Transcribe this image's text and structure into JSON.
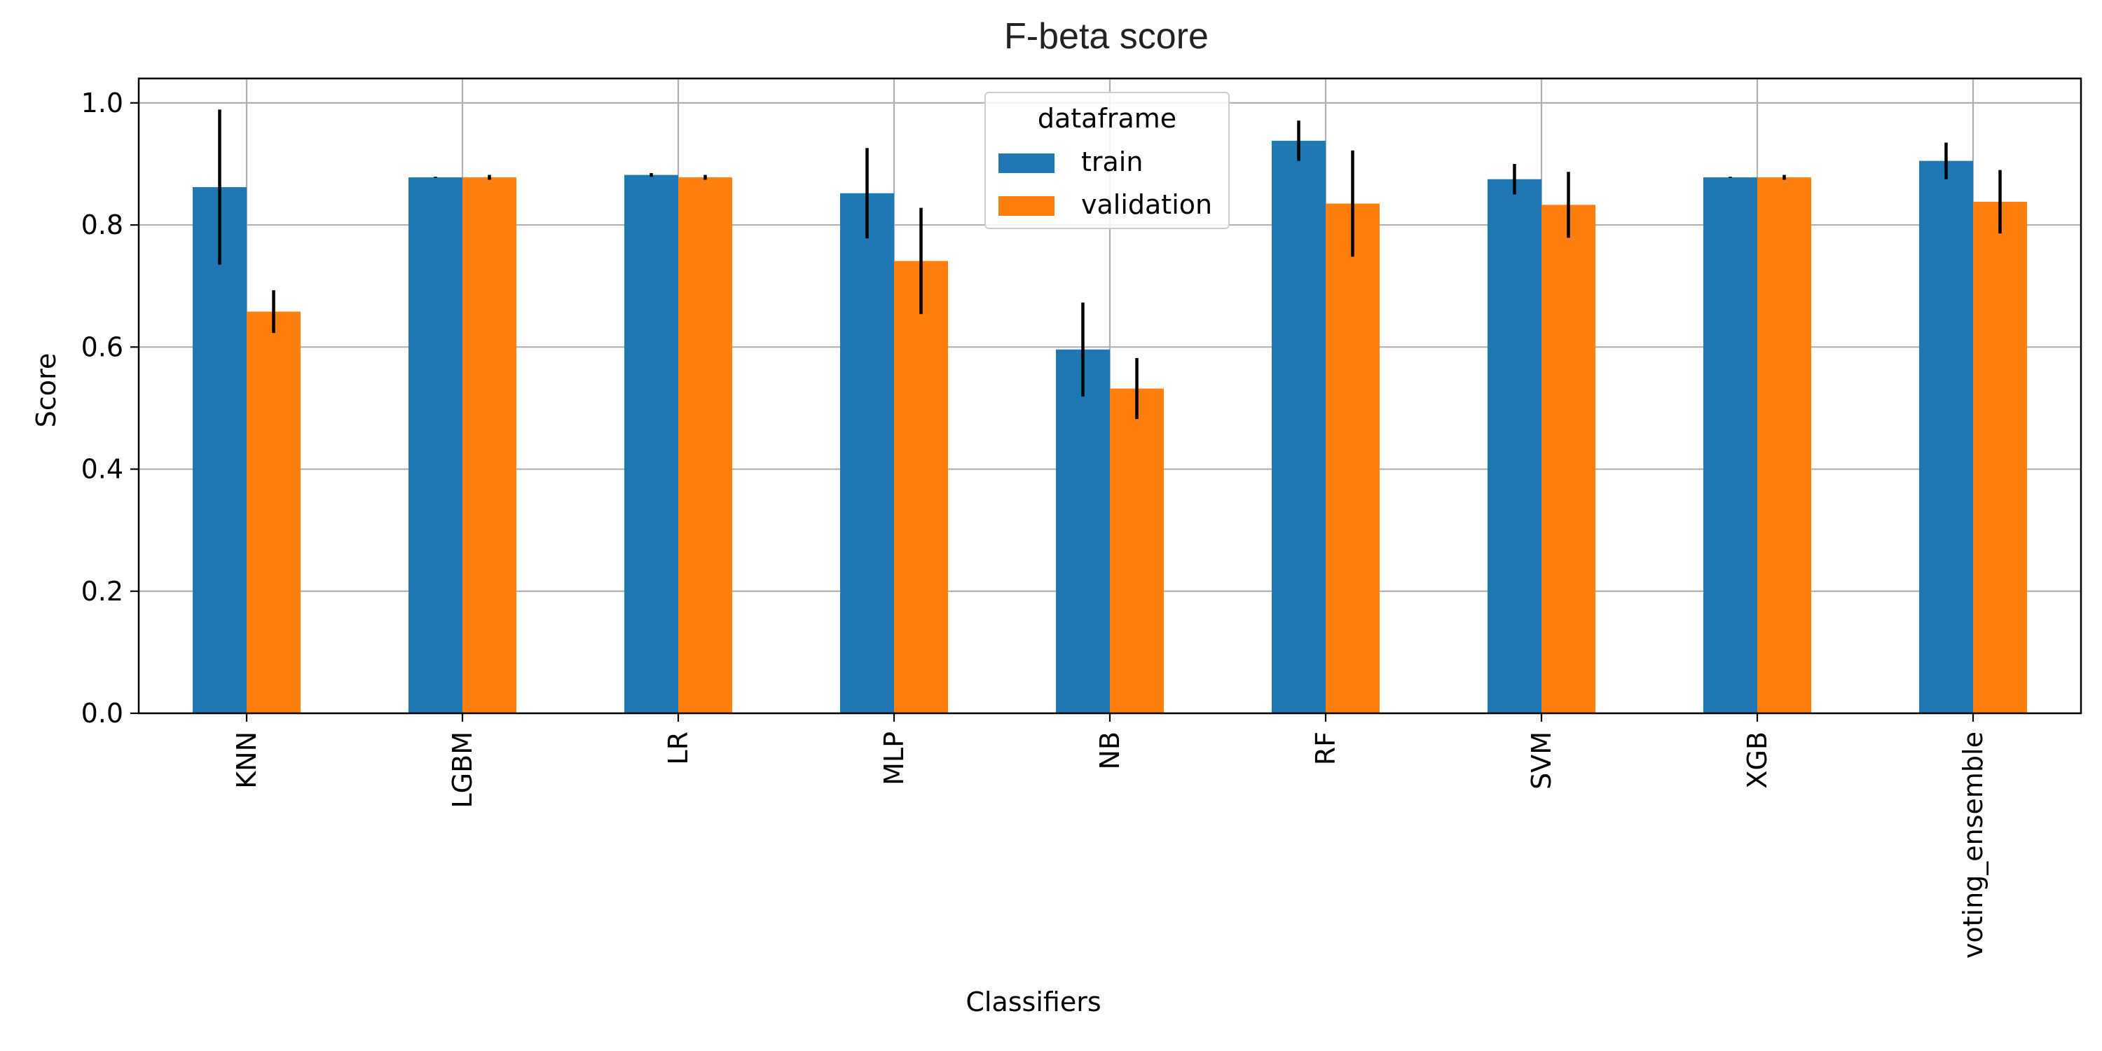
{
  "chart_data": {
    "type": "bar",
    "title": "F-beta score",
    "xlabel": "Classifiers",
    "ylabel": "Score",
    "ylim": [
      0,
      1.04
    ],
    "yticks": [
      "0.0",
      "0.2",
      "0.4",
      "0.6",
      "0.8",
      "1.0"
    ],
    "grid": true,
    "legend": {
      "title": "dataframe",
      "placement": "top-center"
    },
    "categories": [
      "KNN",
      "LGBM",
      "LR",
      "MLP",
      "NB",
      "RF",
      "SVM",
      "XGB",
      "voting_ensemble"
    ],
    "series": [
      {
        "name": "train",
        "color": "#1f77b4",
        "values": [
          0.862,
          0.878,
          0.882,
          0.852,
          0.596,
          0.938,
          0.875,
          0.878,
          0.905
        ],
        "error": [
          0.127,
          0.001,
          0.003,
          0.074,
          0.077,
          0.033,
          0.025,
          0.001,
          0.03
        ]
      },
      {
        "name": "validation",
        "color": "#ff7f0e",
        "values": [
          0.658,
          0.878,
          0.878,
          0.741,
          0.532,
          0.835,
          0.833,
          0.878,
          0.838
        ],
        "error": [
          0.035,
          0.004,
          0.004,
          0.087,
          0.05,
          0.087,
          0.054,
          0.004,
          0.052
        ]
      }
    ]
  }
}
